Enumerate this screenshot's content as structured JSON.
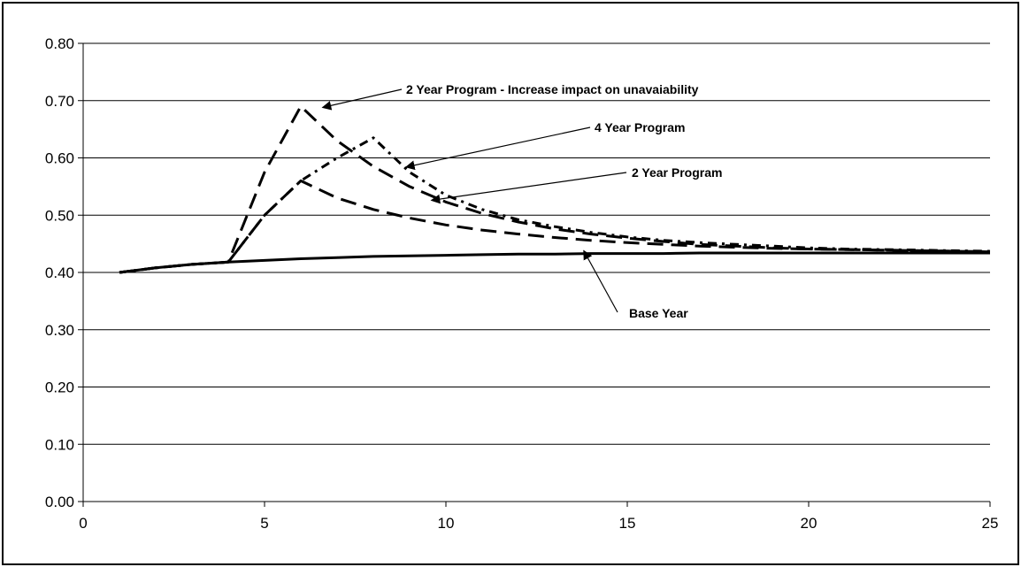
{
  "chart_data": {
    "type": "line",
    "title": "",
    "xlabel": "",
    "ylabel": "",
    "xlim": [
      0,
      25
    ],
    "ylim": [
      0,
      0.8
    ],
    "x_ticks": [
      0,
      5,
      10,
      15,
      20,
      25
    ],
    "y_ticks": [
      0.0,
      0.1,
      0.2,
      0.3,
      0.4,
      0.5,
      0.6,
      0.7,
      0.8
    ],
    "x_tick_labels": [
      "0",
      "5",
      "10",
      "15",
      "20",
      "25"
    ],
    "y_tick_labels": [
      "0.00",
      "0.10",
      "0.20",
      "0.30",
      "0.40",
      "0.50",
      "0.60",
      "0.70",
      "0.80"
    ],
    "grid": "horizontal",
    "legend": "none",
    "series": [
      {
        "key": "base",
        "x": [
          1,
          2,
          3,
          4,
          5,
          6,
          7,
          8,
          9,
          10,
          11,
          12,
          13,
          14,
          15,
          16,
          17,
          18,
          19,
          20,
          21,
          22,
          23,
          24,
          25
        ],
        "values": [
          0.4,
          0.408,
          0.414,
          0.418,
          0.421,
          0.424,
          0.426,
          0.428,
          0.429,
          0.43,
          0.431,
          0.432,
          0.432,
          0.433,
          0.433,
          0.433,
          0.434,
          0.434,
          0.434,
          0.434,
          0.434,
          0.434,
          0.434,
          0.434,
          0.434
        ],
        "style": "solid"
      },
      {
        "key": "two_year",
        "x": [
          1,
          2,
          3,
          4,
          5,
          6,
          7,
          8,
          9,
          10,
          11,
          12,
          13,
          14,
          15,
          16,
          17,
          18,
          19,
          20,
          21,
          22,
          23,
          24,
          25
        ],
        "values": [
          0.4,
          0.408,
          0.414,
          0.418,
          0.5,
          0.56,
          0.53,
          0.51,
          0.495,
          0.483,
          0.474,
          0.467,
          0.461,
          0.456,
          0.452,
          0.449,
          0.446,
          0.444,
          0.442,
          0.441,
          0.44,
          0.439,
          0.438,
          0.437,
          0.436
        ],
        "style": "long-dash"
      },
      {
        "key": "four_year",
        "x": [
          1,
          2,
          3,
          4,
          5,
          6,
          7,
          8,
          9,
          10,
          11,
          12,
          13,
          14,
          15,
          16,
          17,
          18,
          19,
          20,
          21,
          22,
          23,
          24,
          25
        ],
        "values": [
          0.4,
          0.408,
          0.414,
          0.418,
          0.5,
          0.56,
          0.6,
          0.635,
          0.575,
          0.535,
          0.51,
          0.492,
          0.48,
          0.47,
          0.462,
          0.456,
          0.452,
          0.449,
          0.446,
          0.443,
          0.441,
          0.44,
          0.439,
          0.438,
          0.437
        ],
        "style": "dash-dot"
      },
      {
        "key": "two_year_increase",
        "x": [
          1,
          2,
          3,
          4,
          5,
          6,
          7,
          8,
          9,
          10,
          11,
          12,
          13,
          14,
          15,
          16,
          17,
          18,
          19,
          20,
          21,
          22,
          23,
          24,
          25
        ],
        "values": [
          0.4,
          0.408,
          0.414,
          0.418,
          0.575,
          0.69,
          0.63,
          0.585,
          0.55,
          0.523,
          0.503,
          0.488,
          0.476,
          0.467,
          0.46,
          0.454,
          0.449,
          0.446,
          0.443,
          0.441,
          0.44,
          0.439,
          0.438,
          0.437,
          0.436
        ],
        "style": "long-dash"
      }
    ],
    "annotations": [
      {
        "key": "two_year_increase",
        "text": "2 Year Program - Increase impact on unavaiability",
        "arrow_to": [
          6.6,
          0.688
        ]
      },
      {
        "key": "four_year",
        "text": "4 Year Program",
        "arrow_to": [
          8.9,
          0.584
        ]
      },
      {
        "key": "two_year",
        "text": "2 Year Program",
        "arrow_to": [
          9.6,
          0.526
        ]
      },
      {
        "key": "base",
        "text": "Base Year",
        "arrow_to": [
          13.8,
          0.438
        ]
      }
    ]
  }
}
